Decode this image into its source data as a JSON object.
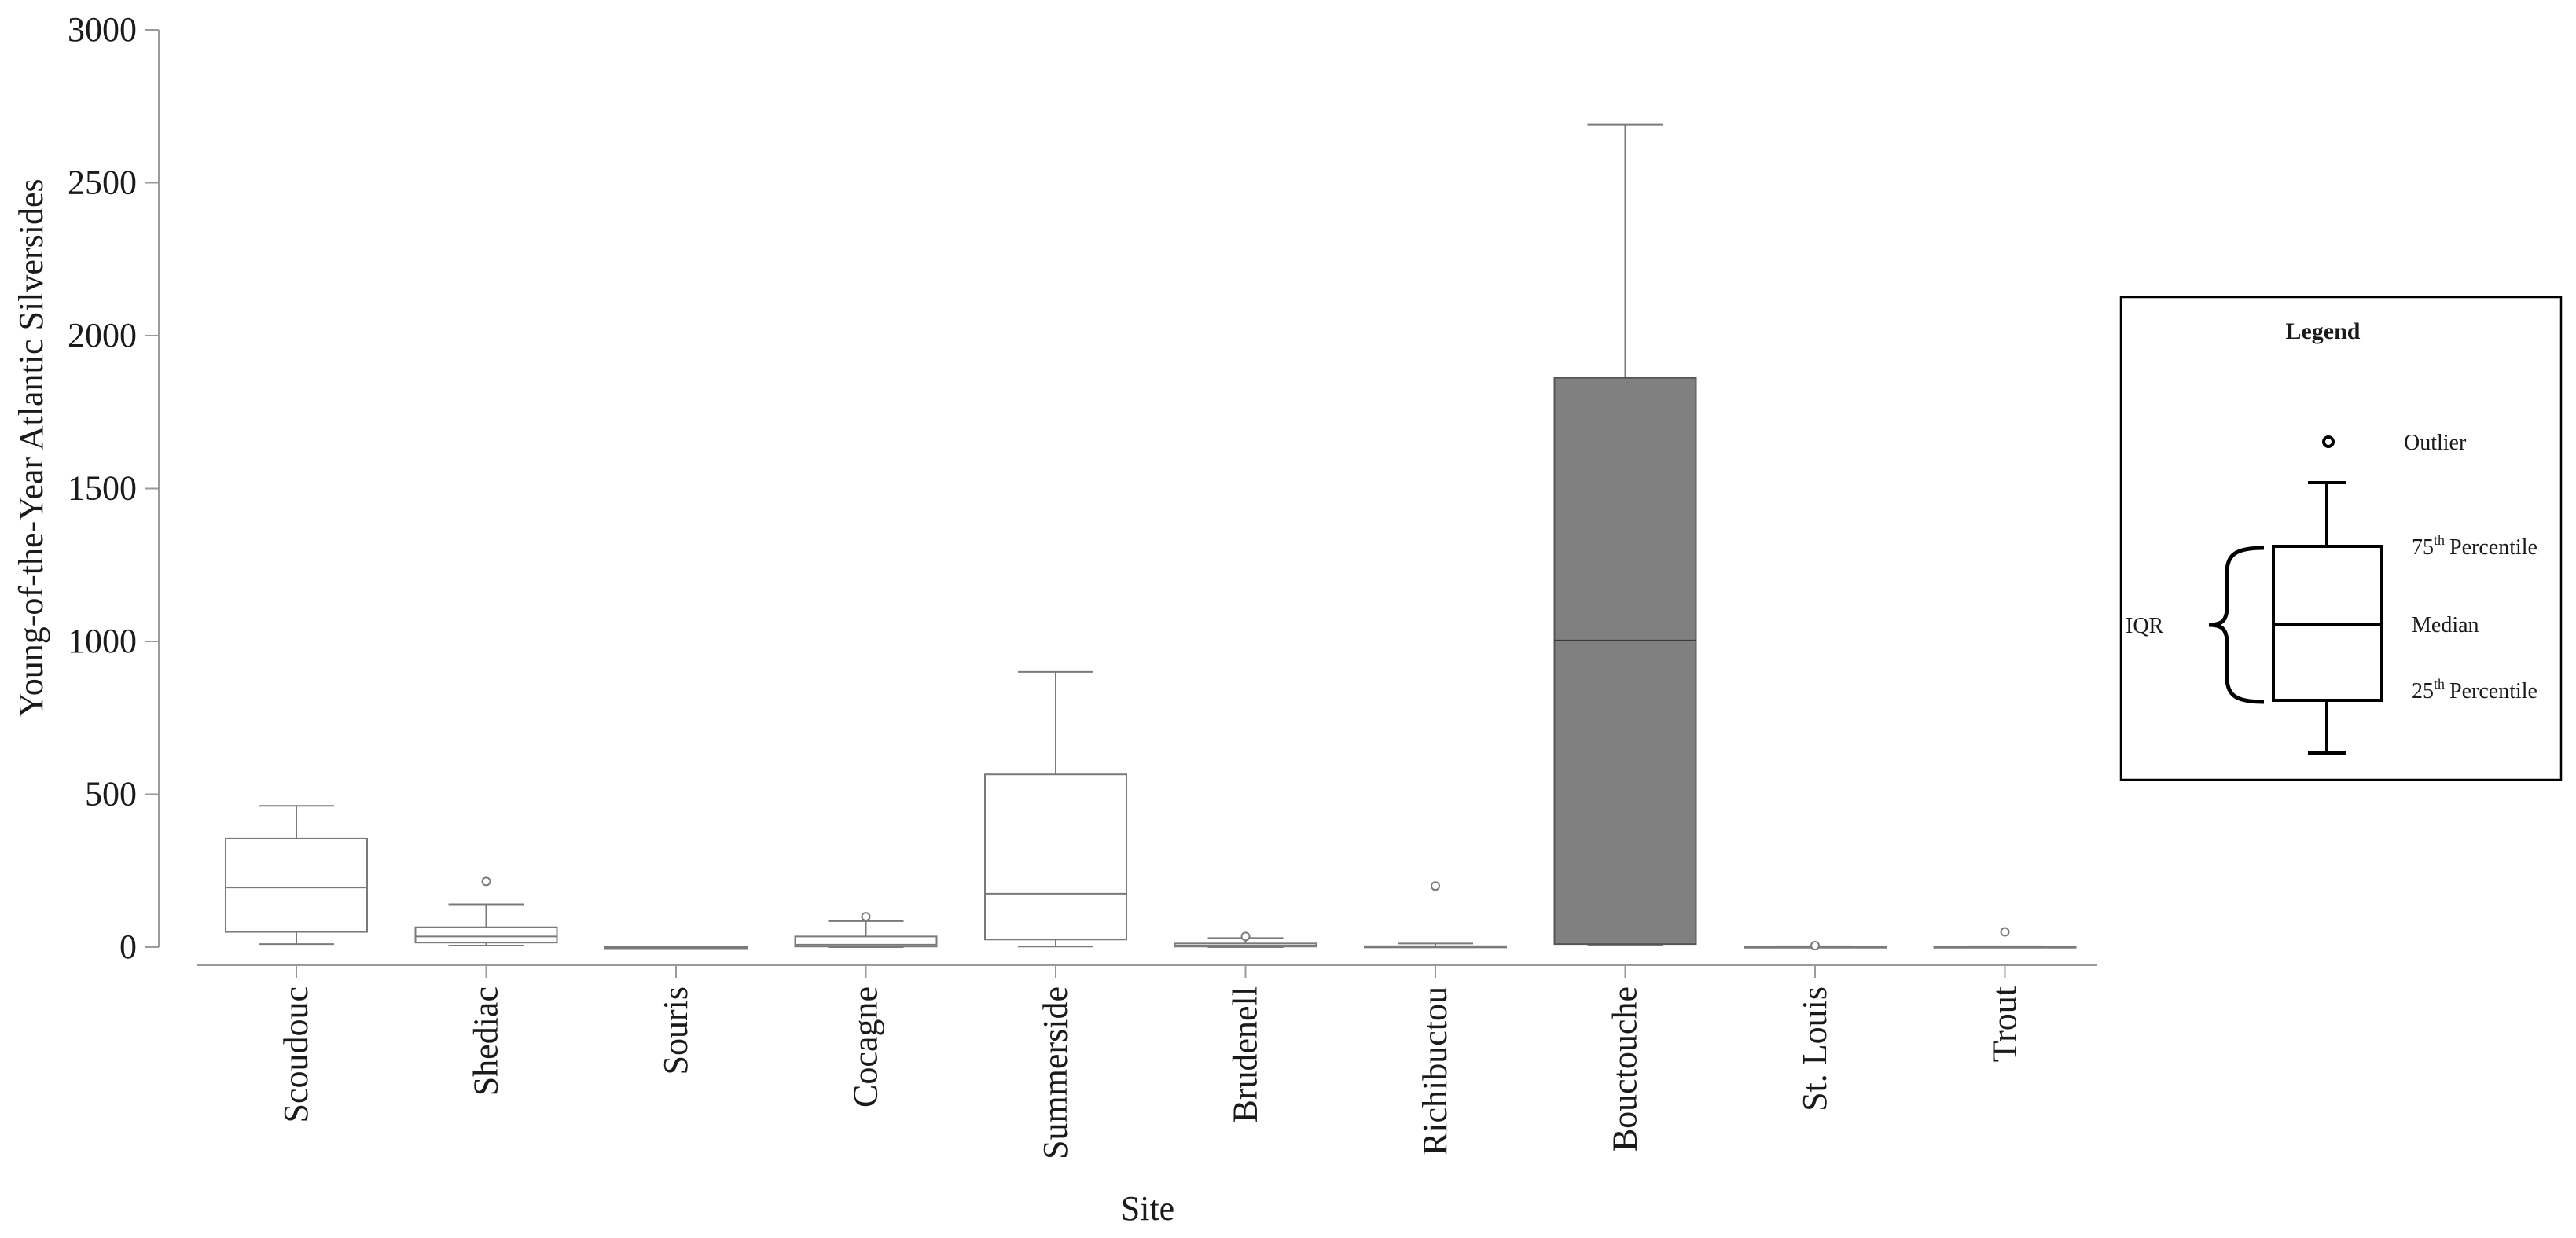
{
  "chart_data": {
    "type": "box",
    "xlabel": "Site",
    "ylabel": "Young-of-the-Year Atlantic Silversides",
    "ylim": [
      0,
      3000
    ],
    "yticks": [
      0,
      500,
      1000,
      1500,
      2000,
      2500,
      3000
    ],
    "grid": false,
    "categories": [
      "Scoudouc",
      "Shediac",
      "Souris",
      "Cocagne",
      "Summerside",
      "Brudenell",
      "Richibuctou",
      "Bouctouche",
      "St. Louis",
      "Trout"
    ],
    "boxes": [
      {
        "site": "Scoudouc",
        "min": 10,
        "q1": 50,
        "median": 195,
        "q3": 355,
        "max": 462,
        "outliers": []
      },
      {
        "site": "Shediac",
        "min": 5,
        "q1": 15,
        "median": 35,
        "q3": 65,
        "max": 140,
        "outliers": [
          215
        ]
      },
      {
        "site": "Souris",
        "min": 0,
        "q1": 0,
        "median": 0,
        "q3": 0,
        "max": 0,
        "outliers": []
      },
      {
        "site": "Cocagne",
        "min": 0,
        "q1": 2,
        "median": 8,
        "q3": 35,
        "max": 85,
        "outliers": [
          100
        ]
      },
      {
        "site": "Summerside",
        "min": 2,
        "q1": 25,
        "median": 175,
        "q3": 565,
        "max": 900,
        "outliers": []
      },
      {
        "site": "Brudenell",
        "min": 0,
        "q1": 2,
        "median": 5,
        "q3": 12,
        "max": 30,
        "outliers": [
          35
        ]
      },
      {
        "site": "Richibuctou",
        "min": 0,
        "q1": 1,
        "median": 2,
        "q3": 3,
        "max": 12,
        "outliers": [
          200
        ]
      },
      {
        "site": "Bouctouche",
        "min": 5,
        "q1": 10,
        "median": 1003,
        "q3": 1862,
        "max": 2690,
        "outliers": [],
        "color": "#808080"
      },
      {
        "site": "St. Louis",
        "min": 0,
        "q1": 0,
        "median": 1,
        "q3": 2,
        "max": 3,
        "outliers": [
          5
        ]
      },
      {
        "site": "Trout",
        "min": 0,
        "q1": 0,
        "median": 1,
        "q3": 2,
        "max": 3,
        "outliers": [
          50
        ]
      }
    ]
  },
  "legend": {
    "title": "Legend",
    "outlier": "Outlier",
    "p75_num": "75",
    "p75_sup": "th",
    "p75_text": "Percentile",
    "median": "Median",
    "p25_num": "25",
    "p25_sup": "th",
    "p25_text": "Percentile",
    "iqr": "IQR"
  },
  "colors": {
    "box_fill_default": "#ffffff",
    "box_fill_highlight": "#808080",
    "stroke": "#7a7a7a",
    "axis": "#9a9a9a",
    "legend_stroke": "#000000"
  }
}
